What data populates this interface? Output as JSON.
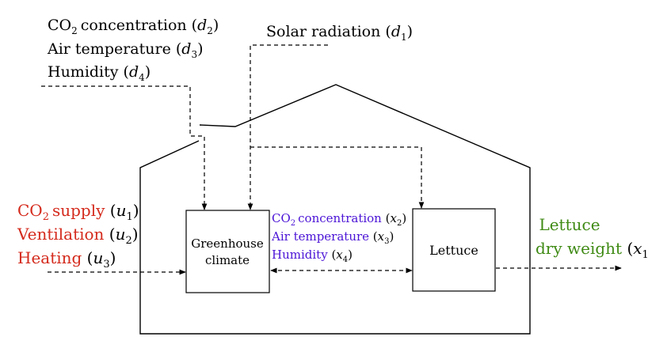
{
  "disturbances": {
    "d2": {
      "name": "concentration",
      "co2_prefix": "CO",
      "co2_sub": "2",
      "sym": "d",
      "idx": "2"
    },
    "d3": {
      "name": "Air temperature",
      "sym": "d",
      "idx": "3"
    },
    "d4": {
      "name": "Humidity",
      "sym": "d",
      "idx": "4"
    },
    "d1": {
      "name": "Solar radiation",
      "sym": "d",
      "idx": "1"
    }
  },
  "inputs": {
    "u1": {
      "co2_prefix": "CO",
      "co2_sub": "2",
      "name": "supply",
      "sym": "u",
      "idx": "1"
    },
    "u2": {
      "name": "Ventilation",
      "sym": "u",
      "idx": "2"
    },
    "u3": {
      "name": "Heating",
      "sym": "u",
      "idx": "3"
    }
  },
  "states": {
    "x2": {
      "co2_prefix": "CO",
      "co2_sub": "2",
      "name": "concentration",
      "sym": "x",
      "idx": "2"
    },
    "x3": {
      "name": "Air temperature",
      "sym": "x",
      "idx": "3"
    },
    "x4": {
      "name": "Humidity",
      "sym": "x",
      "idx": "4"
    }
  },
  "blocks": {
    "climate_line1": "Greenhouse",
    "climate_line2": "climate",
    "lettuce": "Lettuce"
  },
  "output": {
    "line1": "Lettuce",
    "line2": "dry weight",
    "sym": "x",
    "idx": "1"
  },
  "colors": {
    "input": "#d42a1c",
    "state": "#4b14d6",
    "output": "#3f8a14",
    "ink": "#000000"
  }
}
